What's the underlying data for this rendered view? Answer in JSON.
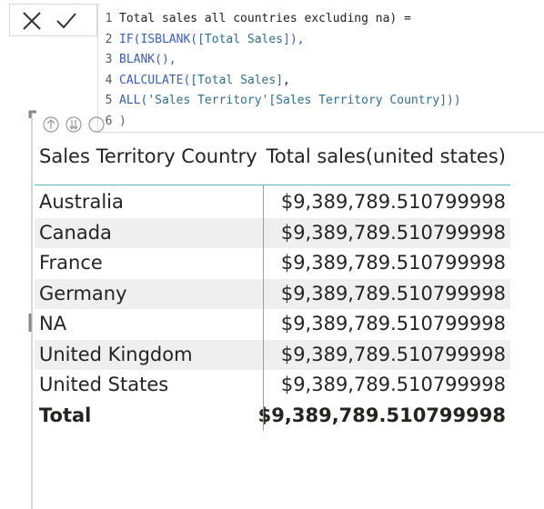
{
  "formula": {
    "lines": [
      {
        "number": "1",
        "segments": [
          {
            "text": "Total sales all countries excluding na) =",
            "color": "#222222"
          }
        ]
      },
      {
        "number": "2",
        "segments": [
          {
            "text": "IF(ISBLANK(",
            "color": "#3a5fb5"
          },
          {
            "text": "[Total Sales]",
            "color": "#2e6f8e"
          },
          {
            "text": "),",
            "color": "#3a5fb5"
          }
        ]
      },
      {
        "number": "3",
        "segments": [
          {
            "text": "BLANK(),",
            "color": "#3a5fb5"
          }
        ]
      },
      {
        "number": "4",
        "segments": [
          {
            "text": "CALCULATE(",
            "color": "#3a5fb5"
          },
          {
            "text": "[Total Sales]",
            "color": "#2e6f8e"
          },
          {
            "text": ",",
            "color": "#222222"
          }
        ]
      },
      {
        "number": "5",
        "segments": [
          {
            "text": "ALL(",
            "color": "#3a5fb5"
          },
          {
            "text": "'Sales Territory'[Sales Territory Country]",
            "color": "#2e6f8e"
          },
          {
            "text": "))",
            "color": "#3a5fb5"
          }
        ]
      },
      {
        "number": "6",
        "segments": [
          {
            "text": ")",
            "color": "#3a5fb5"
          }
        ]
      }
    ]
  },
  "table": {
    "header": [
      "Sales Territory Country",
      "Total sales(united states)"
    ],
    "rows": [
      [
        "Australia",
        "$9,389,789.510799998"
      ],
      [
        "Canada",
        "$9,389,789.510799998"
      ],
      [
        "France",
        "$9,389,789.510799998"
      ],
      [
        "Germany",
        "$9,389,789.510799998"
      ],
      [
        "NA",
        "$9,389,789.510799998"
      ],
      [
        "United Kingdom",
        "$9,389,789.510799998"
      ],
      [
        "United States",
        "$9,389,789.510799998"
      ]
    ],
    "total": [
      "Total",
      "$9,389,789.510799998"
    ]
  }
}
